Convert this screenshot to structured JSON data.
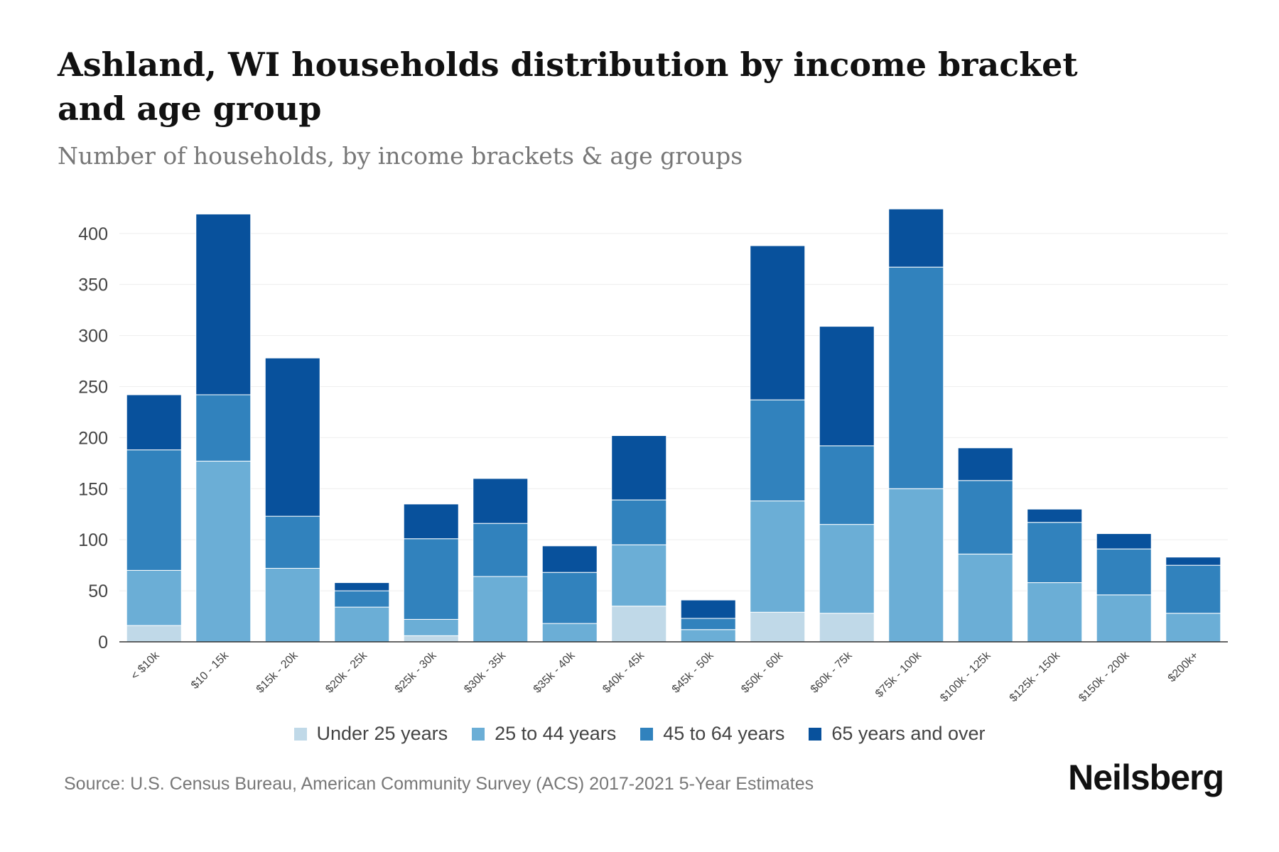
{
  "colors": {
    "series": [
      "#c0d9e8",
      "#6baed6",
      "#3182bd",
      "#08519c"
    ],
    "grid": "#eeeeee",
    "axis": "#333333",
    "tick_text": "#444444"
  },
  "header": {
    "title": "Ashland, WI households distribution by income bracket and age group",
    "subtitle": "Number of households, by income brackets & age groups"
  },
  "footer": {
    "source": "Source: U.S. Census Bureau, American Community Survey (ACS) 2017-2021 5-Year Estimates",
    "brand": "Neilsberg"
  },
  "chart_data": {
    "type": "bar",
    "stacked": true,
    "title": "Ashland, WI households distribution by income bracket and age group",
    "subtitle": "Number of households, by income brackets & age groups",
    "xlabel": "",
    "ylabel": "",
    "ylim": [
      0,
      420
    ],
    "yticks": [
      0,
      50,
      100,
      150,
      200,
      250,
      300,
      350,
      400
    ],
    "grid": true,
    "legend_position": "bottom",
    "categories": [
      "< $10k",
      "$10 - 15k",
      "$15k - 20k",
      "$20k - 25k",
      "$25k - 30k",
      "$30k - 35k",
      "$35k - 40k",
      "$40k - 45k",
      "$45k - 50k",
      "$50k - 60k",
      "$60k - 75k",
      "$75k - 100k",
      "$100k - 125k",
      "$125k - 150k",
      "$150k - 200k",
      "$200k+"
    ],
    "series": [
      {
        "name": "Under 25 years",
        "values": [
          16,
          0,
          0,
          0,
          6,
          0,
          0,
          35,
          0,
          29,
          28,
          0,
          0,
          0,
          0,
          0
        ]
      },
      {
        "name": "25 to 44 years",
        "values": [
          54,
          177,
          72,
          34,
          16,
          64,
          18,
          60,
          12,
          109,
          87,
          150,
          86,
          58,
          46,
          28
        ]
      },
      {
        "name": "45 to 64 years",
        "values": [
          118,
          65,
          51,
          16,
          79,
          52,
          50,
          44,
          11,
          99,
          77,
          217,
          72,
          59,
          45,
          47
        ]
      },
      {
        "name": "65 years and over",
        "values": [
          54,
          177,
          155,
          8,
          34,
          44,
          26,
          63,
          18,
          151,
          117,
          57,
          32,
          13,
          15,
          8
        ]
      }
    ]
  }
}
